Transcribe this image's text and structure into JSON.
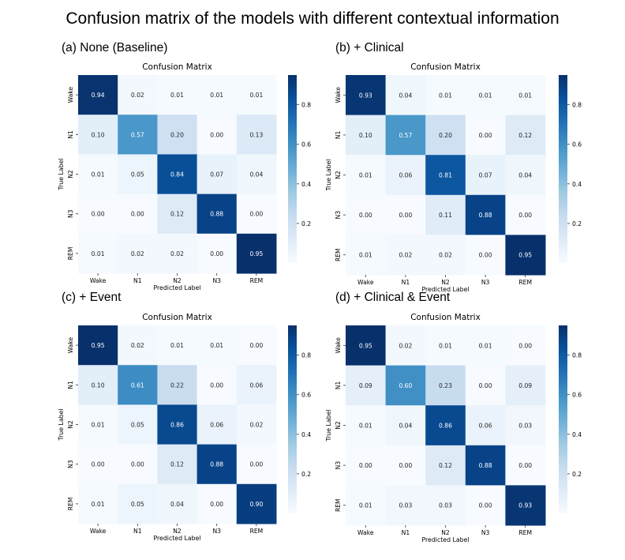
{
  "title": "Confusion matrix of the models with different contextual information",
  "chart_data": [
    {
      "type": "heatmap",
      "panel_label": "(a) None (Baseline)",
      "title": "Confusion Matrix",
      "xlabel": "Predicted Label",
      "ylabel": "True Label",
      "x_categories": [
        "Wake",
        "N1",
        "N2",
        "N3",
        "REM"
      ],
      "y_categories": [
        "Wake",
        "N1",
        "N2",
        "N3",
        "REM"
      ],
      "values": [
        [
          0.94,
          0.02,
          0.01,
          0.01,
          0.01
        ],
        [
          0.1,
          0.57,
          0.2,
          0.0,
          0.13
        ],
        [
          0.01,
          0.05,
          0.84,
          0.07,
          0.04
        ],
        [
          0.0,
          0.0,
          0.12,
          0.88,
          0.0
        ],
        [
          0.01,
          0.02,
          0.02,
          0.0,
          0.95
        ]
      ],
      "colorbar": {
        "min": 0.0,
        "max": 0.95,
        "ticks": [
          "0.2",
          "0.4",
          "0.6",
          "0.8"
        ],
        "colormap": "Blues"
      }
    },
    {
      "type": "heatmap",
      "panel_label": "(b) + Clinical",
      "title": "Confusion Matrix",
      "xlabel": "Predicted Label",
      "ylabel": "True Label",
      "x_categories": [
        "Wake",
        "N1",
        "N2",
        "N3",
        "REM"
      ],
      "y_categories": [
        "Wake",
        "N1",
        "N2",
        "N3",
        "REM"
      ],
      "values": [
        [
          0.93,
          0.04,
          0.01,
          0.01,
          0.01
        ],
        [
          0.1,
          0.57,
          0.2,
          0.0,
          0.12
        ],
        [
          0.01,
          0.06,
          0.81,
          0.07,
          0.04
        ],
        [
          0.0,
          0.0,
          0.11,
          0.88,
          0.0
        ],
        [
          0.01,
          0.02,
          0.02,
          0.0,
          0.95
        ]
      ],
      "colorbar": {
        "min": 0.0,
        "max": 0.95,
        "ticks": [
          "0.2",
          "0.4",
          "0.6",
          "0.8"
        ],
        "colormap": "Blues"
      }
    },
    {
      "type": "heatmap",
      "panel_label": "(c) + Event",
      "title": "Confusion Matrix",
      "xlabel": "Predicted Label",
      "ylabel": "True Label",
      "x_categories": [
        "Wake",
        "N1",
        "N2",
        "N3",
        "REM"
      ],
      "y_categories": [
        "Wake",
        "N1",
        "N2",
        "N3",
        "REM"
      ],
      "values": [
        [
          0.95,
          0.02,
          0.01,
          0.01,
          0.0
        ],
        [
          0.1,
          0.61,
          0.22,
          0.0,
          0.06
        ],
        [
          0.01,
          0.05,
          0.86,
          0.06,
          0.02
        ],
        [
          0.0,
          0.0,
          0.12,
          0.88,
          0.0
        ],
        [
          0.01,
          0.05,
          0.04,
          0.0,
          0.9
        ]
      ],
      "colorbar": {
        "min": 0.0,
        "max": 0.95,
        "ticks": [
          "0.2",
          "0.4",
          "0.6",
          "0.8"
        ],
        "colormap": "Blues"
      }
    },
    {
      "type": "heatmap",
      "panel_label": "(d) + Clinical & Event",
      "title": "Confusion Matrix",
      "xlabel": "Predicted Label",
      "ylabel": "True Label",
      "x_categories": [
        "Wake",
        "N1",
        "N2",
        "N3",
        "REM"
      ],
      "y_categories": [
        "Wake",
        "N1",
        "N2",
        "N3",
        "REM"
      ],
      "values": [
        [
          0.95,
          0.02,
          0.01,
          0.01,
          0.0
        ],
        [
          0.09,
          0.6,
          0.23,
          0.0,
          0.09
        ],
        [
          0.01,
          0.04,
          0.86,
          0.06,
          0.03
        ],
        [
          0.0,
          0.0,
          0.12,
          0.88,
          0.0
        ],
        [
          0.01,
          0.03,
          0.03,
          0.0,
          0.93
        ]
      ],
      "colorbar": {
        "min": 0.0,
        "max": 0.95,
        "ticks": [
          "0.2",
          "0.4",
          "0.6",
          "0.8"
        ],
        "colormap": "Blues"
      }
    }
  ]
}
